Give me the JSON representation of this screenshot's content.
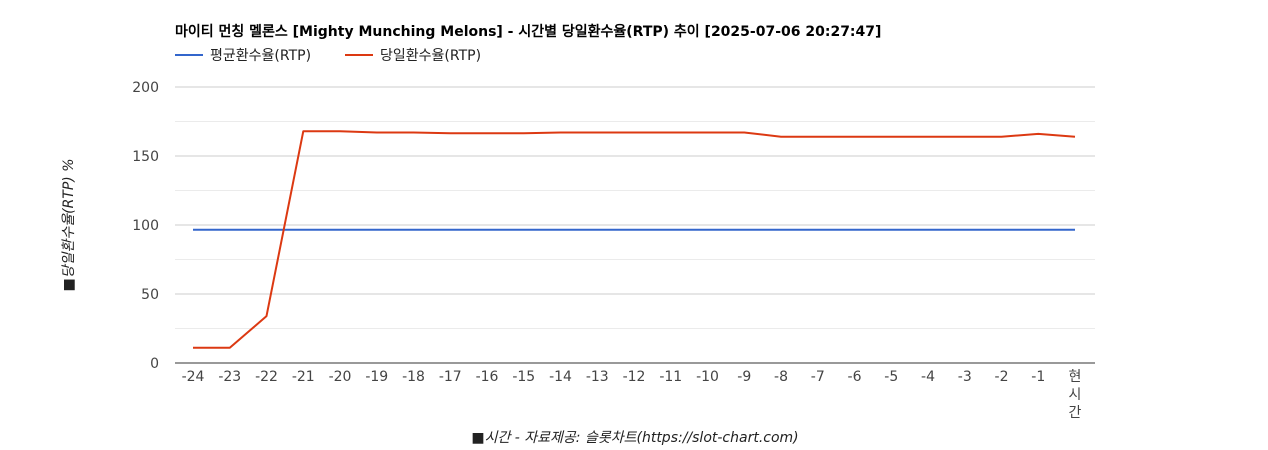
{
  "chart_data": {
    "type": "line",
    "title": "마이티 먼칭 멜론스 [Mighty Munching Melons] - 시간별 당일환수율(RTP) 추이 [2025-07-06 20:27:47]",
    "xlabel": "■시간 - 자료제공: 슬롯차트(https://slot-chart.com)",
    "ylabel": "■당일환수율(RTP) %",
    "categories": [
      "-24",
      "-23",
      "-22",
      "-21",
      "-20",
      "-19",
      "-18",
      "-17",
      "-16",
      "-15",
      "-14",
      "-13",
      "-12",
      "-11",
      "-10",
      "-9",
      "-8",
      "-7",
      "-6",
      "-5",
      "-4",
      "-3",
      "-2",
      "-1",
      "현시간"
    ],
    "ylim": [
      0,
      200
    ],
    "yticks": [
      0,
      50,
      100,
      150,
      200
    ],
    "grid": true,
    "legend_position": "top-left",
    "series": [
      {
        "name": "평균환수율(RTP)",
        "color": "#3366cc",
        "values": [
          96.5,
          96.5,
          96.5,
          96.5,
          96.5,
          96.5,
          96.5,
          96.5,
          96.5,
          96.5,
          96.5,
          96.5,
          96.5,
          96.5,
          96.5,
          96.5,
          96.5,
          96.5,
          96.5,
          96.5,
          96.5,
          96.5,
          96.5,
          96.5,
          96.5
        ]
      },
      {
        "name": "당일환수율(RTP)",
        "color": "#dc3912",
        "values": [
          11,
          11,
          34,
          168,
          168,
          167,
          167,
          166.5,
          166.5,
          166.5,
          167,
          167,
          167,
          167,
          167,
          167,
          164,
          164,
          164,
          164,
          164,
          164,
          164,
          166,
          164
        ]
      }
    ]
  }
}
